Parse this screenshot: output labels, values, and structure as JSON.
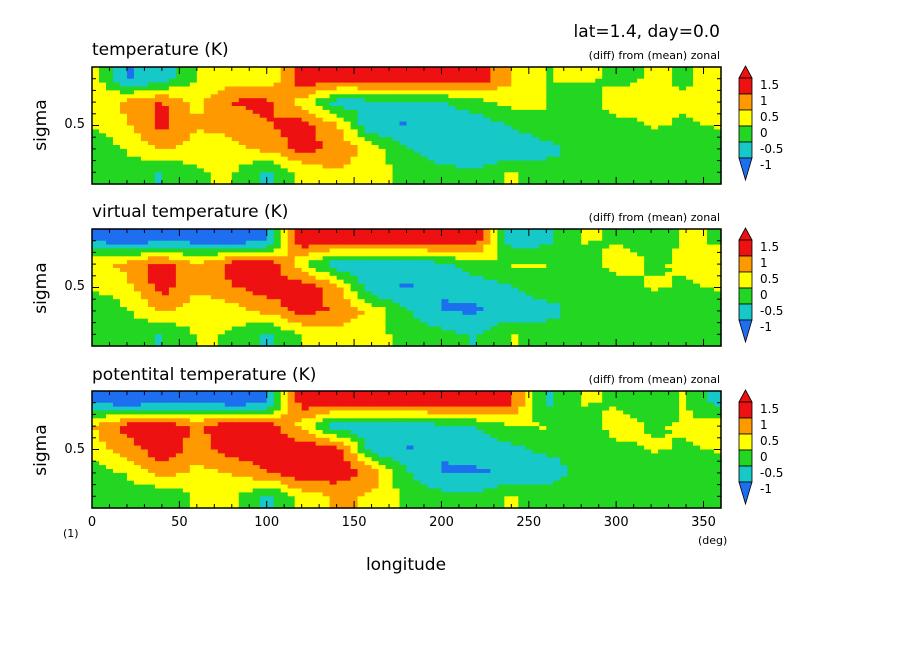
{
  "header": {
    "title": "lat=1.4, day=0.0"
  },
  "colors": [
    "#1e6ef0",
    "#16c8c8",
    "#22d622",
    "#ffff00",
    "#ff9900",
    "#ee1111"
  ],
  "levels": [
    "-1",
    "-0.5",
    "0",
    "0.5",
    "1",
    "1.5"
  ],
  "chart_data": [
    {
      "type": "heatmap",
      "title": "temperature (K)",
      "subtitle": "(diff) from (mean) zonal",
      "ylabel": "sigma",
      "xlabel": "",
      "xlim": [
        0,
        360
      ],
      "ylim": [
        1,
        0
      ],
      "x_ticks": [],
      "y_ticks": [
        "0.5"
      ],
      "colorbar_labels": [
        "1.5",
        "1",
        "0.5",
        "0",
        "-0.5",
        "-1"
      ],
      "x": [
        0,
        20,
        40,
        60,
        80,
        100,
        120,
        140,
        160,
        180,
        200,
        220,
        240,
        260,
        280,
        300,
        320,
        340,
        360
      ],
      "y": [
        0.1,
        0.3,
        0.5,
        0.7,
        0.9
      ],
      "z": [
        [
          0.6,
          -0.8,
          -0.6,
          0.3,
          0.5,
          0.3,
          1.6,
          1.6,
          1.6,
          1.6,
          1.6,
          1.6,
          0.8,
          0.2,
          0.4,
          0.1,
          0.3,
          0.2,
          0.4
        ],
        [
          0.4,
          0.9,
          1.3,
          0.6,
          1.3,
          1.4,
          0.6,
          -0.5,
          -0.4,
          -0.3,
          -0.3,
          0.1,
          0.4,
          0.3,
          -0.2,
          0.6,
          0.3,
          0.3,
          0.4
        ],
        [
          0.3,
          0.7,
          1.4,
          0.8,
          0.9,
          1.2,
          1.5,
          0.8,
          -0.7,
          -0.8,
          -0.6,
          -0.6,
          -0.2,
          0.2,
          -0.2,
          0.0,
          0.3,
          0.2,
          0.3
        ],
        [
          -0.2,
          0.3,
          0.8,
          0.5,
          0.6,
          0.9,
          1.4,
          1.2,
          0.5,
          -0.2,
          -0.7,
          -0.7,
          -0.8,
          -0.5,
          0.0,
          0.2,
          -0.2,
          0.1,
          -0.2
        ],
        [
          0.1,
          0.0,
          -0.3,
          0.2,
          0.3,
          -0.4,
          0.4,
          0.7,
          0.5,
          0.1,
          0.0,
          -0.2,
          0.3,
          0.1,
          -0.2,
          0.0,
          -0.1,
          0.2,
          0.1
        ]
      ]
    },
    {
      "type": "heatmap",
      "title": "virtual temperature (K)",
      "subtitle": "(diff) from (mean) zonal",
      "ylabel": "sigma",
      "xlabel": "",
      "xlim": [
        0,
        360
      ],
      "ylim": [
        1,
        0
      ],
      "x_ticks": [],
      "y_ticks": [
        "0.5"
      ],
      "colorbar_labels": [
        "1.5",
        "1",
        "0.5",
        "0",
        "-0.5",
        "-1"
      ],
      "x": [
        0,
        20,
        40,
        60,
        80,
        100,
        120,
        140,
        160,
        180,
        200,
        220,
        240,
        260,
        280,
        300,
        320,
        340,
        360
      ],
      "y": [
        0.1,
        0.3,
        0.5,
        0.7,
        0.9
      ],
      "z": [
        [
          -0.8,
          -1.0,
          -0.9,
          -0.9,
          -1.0,
          -0.9,
          1.6,
          1.6,
          1.6,
          1.6,
          1.6,
          1.5,
          -0.6,
          -0.4,
          0.3,
          0.2,
          0.1,
          0.3,
          0.2
        ],
        [
          0.6,
          0.9,
          1.5,
          0.7,
          1.5,
          1.6,
          0.4,
          -0.7,
          -0.6,
          -0.5,
          -0.4,
          0.1,
          0.3,
          0.3,
          -0.2,
          0.5,
          0.2,
          0.3,
          0.4
        ],
        [
          0.3,
          0.6,
          1.5,
          0.8,
          1.2,
          1.5,
          1.6,
          1.0,
          -0.7,
          -0.8,
          -0.7,
          -0.6,
          -0.3,
          0.1,
          -0.2,
          0.0,
          0.3,
          0.2,
          0.3
        ],
        [
          -0.3,
          0.2,
          0.8,
          0.5,
          0.5,
          0.9,
          1.4,
          1.2,
          0.6,
          -0.2,
          -0.8,
          -0.8,
          -0.7,
          -0.5,
          0.0,
          0.2,
          -0.2,
          0.1,
          -0.2
        ],
        [
          0.0,
          0.0,
          -0.3,
          0.3,
          0.2,
          -0.4,
          0.3,
          0.6,
          0.4,
          0.1,
          -0.1,
          -0.3,
          0.3,
          0.1,
          -0.2,
          0.0,
          -0.1,
          0.2,
          0.0
        ]
      ]
    },
    {
      "type": "heatmap",
      "title": "potentital temperature (K)",
      "subtitle": "(diff) from (mean) zonal",
      "ylabel": "sigma",
      "xlabel": "longitude",
      "xlim": [
        0,
        360
      ],
      "ylim": [
        1,
        0
      ],
      "x_ticks": [
        "0",
        "50",
        "100",
        "150",
        "200",
        "250",
        "300",
        "350"
      ],
      "y_ticks": [
        "0.5"
      ],
      "colorbar_labels": [
        "1.5",
        "1",
        "0.5",
        "0",
        "-0.5",
        "-1"
      ],
      "x": [
        0,
        20,
        40,
        60,
        80,
        100,
        120,
        140,
        160,
        180,
        200,
        220,
        240,
        260,
        280,
        300,
        320,
        340,
        360
      ],
      "y": [
        0.1,
        0.3,
        0.5,
        0.7,
        0.9
      ],
      "z": [
        [
          -0.8,
          -1.0,
          -0.9,
          -0.8,
          -1.0,
          -0.9,
          1.5,
          1.6,
          1.6,
          1.6,
          1.6,
          1.6,
          1.4,
          -0.4,
          0.3,
          0.2,
          -0.2,
          0.3,
          -0.5
        ],
        [
          0.7,
          1.5,
          1.6,
          1.2,
          1.6,
          1.6,
          0.6,
          -0.6,
          -0.6,
          -0.5,
          -0.4,
          -0.2,
          0.2,
          0.3,
          -0.2,
          0.5,
          0.2,
          0.3,
          0.5
        ],
        [
          0.5,
          1.0,
          1.6,
          1.0,
          1.5,
          1.6,
          1.6,
          1.6,
          -0.5,
          -0.8,
          -0.7,
          -0.6,
          -0.4,
          -0.1,
          -0.2,
          0.1,
          0.3,
          0.2,
          0.3
        ],
        [
          0.0,
          0.3,
          1.0,
          0.6,
          0.8,
          1.2,
          1.6,
          1.6,
          1.1,
          -0.2,
          -0.8,
          -0.8,
          -0.7,
          -0.6,
          0.0,
          0.2,
          -0.2,
          0.1,
          -0.2
        ],
        [
          0.2,
          0.0,
          -0.2,
          0.3,
          0.4,
          -0.4,
          0.5,
          0.8,
          0.7,
          0.1,
          -0.1,
          -0.2,
          0.3,
          0.1,
          -0.2,
          0.0,
          -0.1,
          0.2,
          0.1
        ]
      ]
    }
  ],
  "axis_extra": {
    "y_origin_label": "(1)",
    "x_unit": "(deg)"
  }
}
